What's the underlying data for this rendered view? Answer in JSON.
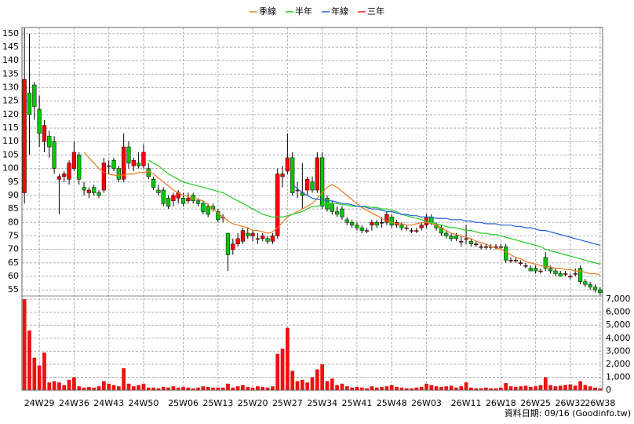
{
  "chart_data": {
    "type": "candlestick",
    "legend": "top",
    "footer": "資料日期: 09/16  (Goodinfo.tw)",
    "up_color": "#ff0000",
    "down_color": "#00c800",
    "volume_color": "#ee1111",
    "grid": true,
    "ylim": [
      52.7,
      152.3
    ],
    "yticks": [
      55,
      60,
      65,
      70,
      75,
      80,
      85,
      90,
      95,
      100,
      105,
      110,
      115,
      120,
      125,
      130,
      135,
      140,
      145,
      150
    ],
    "y2lim": [
      0,
      7250
    ],
    "y2ticks": [
      0,
      {
        "value": 1000,
        "label": "1,000"
      },
      {
        "value": 2000,
        "label": "2,000"
      },
      {
        "value": 3000,
        "label": "3,000"
      },
      {
        "value": 4000,
        "label": "4,000"
      },
      {
        "value": 5000,
        "label": "5,000"
      },
      {
        "value": 6000,
        "label": "6,000"
      },
      {
        "value": 7000,
        "label": "7,000"
      }
    ],
    "categories": [
      null,
      null,
      null,
      "24W29",
      null,
      null,
      null,
      null,
      null,
      null,
      "24W36",
      null,
      null,
      null,
      null,
      null,
      null,
      "24W43",
      null,
      null,
      null,
      null,
      null,
      null,
      "24W50",
      null,
      null,
      null,
      null,
      null,
      null,
      null,
      "25W06",
      null,
      null,
      null,
      null,
      null,
      null,
      "25W13",
      null,
      null,
      null,
      null,
      null,
      null,
      "25W20",
      null,
      null,
      null,
      null,
      null,
      null,
      "25W27",
      null,
      null,
      null,
      null,
      null,
      null,
      "25W34",
      null,
      null,
      null,
      null,
      null,
      null,
      "25W41",
      null,
      null,
      null,
      null,
      null,
      null,
      "25W48",
      null,
      null,
      null,
      null,
      null,
      null,
      "26W03",
      null,
      null,
      null,
      null,
      null,
      null,
      null,
      "26W11",
      null,
      null,
      null,
      null,
      null,
      null,
      "26W18",
      null,
      null,
      null,
      null,
      null,
      null,
      "26W25",
      null,
      null,
      null,
      null,
      null,
      null,
      "26W32",
      null,
      null,
      null,
      null,
      null,
      "26W38"
    ],
    "open": [
      91,
      128,
      131,
      122,
      110,
      112,
      110,
      96,
      97,
      96,
      100,
      105,
      93,
      91,
      93,
      91,
      92,
      101,
      103,
      100,
      96,
      108,
      101,
      102,
      101,
      100,
      96,
      92,
      92,
      89,
      88,
      89,
      89,
      88,
      90,
      88,
      87,
      86,
      86,
      84,
      82,
      76,
      70,
      72,
      73,
      76,
      75,
      74,
      74,
      74,
      73,
      75,
      97,
      99,
      104,
      92,
      91,
      92,
      95,
      92,
      104,
      89,
      87,
      84,
      85,
      81,
      80,
      79,
      78,
      77,
      79,
      80,
      80,
      80,
      82,
      79,
      79,
      78,
      77,
      77,
      78,
      79,
      82,
      79,
      78,
      76,
      75,
      75,
      73,
      74,
      73,
      72,
      71,
      71,
      71,
      71,
      71,
      71,
      66,
      66,
      65,
      64,
      63,
      63,
      62,
      67,
      63,
      62,
      61,
      61,
      60,
      61,
      63,
      58,
      57,
      56,
      55
    ],
    "high": [
      152,
      150,
      132,
      127,
      118,
      114,
      112,
      98,
      99,
      103,
      110,
      106,
      95,
      93,
      94,
      92,
      104,
      103,
      104,
      101,
      113,
      110,
      104,
      106,
      109,
      102,
      97,
      94,
      93,
      90,
      91,
      92,
      91,
      91,
      91,
      89,
      88,
      87,
      87,
      85,
      83,
      76,
      74,
      76,
      78,
      78,
      77,
      76,
      76,
      75,
      76,
      100,
      101,
      113,
      106,
      95,
      102,
      97,
      97,
      106,
      106,
      90,
      88,
      86,
      86,
      82,
      81,
      80,
      79,
      78,
      81,
      81,
      82,
      84,
      83,
      81,
      80,
      79,
      78,
      78,
      80,
      83,
      83,
      80,
      79,
      77,
      76,
      76,
      75,
      79,
      74,
      73,
      72,
      72,
      72,
      72,
      72,
      72,
      67,
      67,
      66,
      65,
      64,
      64,
      63,
      69,
      64,
      63,
      62,
      62,
      61,
      63,
      64,
      59,
      58,
      57,
      56
    ],
    "low": [
      87,
      105,
      118,
      108,
      106,
      104,
      98,
      83,
      95,
      94,
      99,
      94,
      90,
      89,
      90,
      89,
      91,
      98,
      99,
      95,
      95,
      100,
      99,
      100,
      100,
      96,
      92,
      90,
      86,
      85,
      86,
      87,
      86,
      87,
      87,
      86,
      83,
      82,
      84,
      80,
      80,
      62,
      68,
      71,
      72,
      74,
      73,
      72,
      73,
      72,
      72,
      74,
      93,
      98,
      90,
      89,
      85,
      90,
      91,
      91,
      85,
      84,
      83,
      82,
      81,
      79,
      78,
      77,
      76,
      76,
      77,
      78,
      78,
      79,
      78,
      78,
      77,
      77,
      76,
      76,
      77,
      78,
      79,
      77,
      75,
      74,
      73,
      73,
      71,
      72,
      71,
      71,
      70,
      70,
      70,
      70,
      70,
      65,
      65,
      65,
      64,
      63,
      62,
      61,
      61,
      62,
      61,
      60,
      60,
      60,
      59,
      60,
      57,
      56,
      55,
      54,
      53
    ],
    "close": [
      133,
      120,
      123,
      113,
      116,
      108,
      100,
      97,
      98,
      102,
      106,
      96,
      92,
      92,
      91,
      90,
      102,
      101,
      100,
      96,
      108,
      102,
      103,
      101,
      106,
      97,
      93,
      91,
      87,
      86,
      90,
      91,
      87,
      89,
      88,
      87,
      84,
      83,
      85,
      81,
      82,
      68,
      72,
      74,
      77,
      75,
      76,
      74,
      75,
      73,
      75,
      98,
      98,
      104,
      91,
      92,
      90,
      96,
      92,
      104,
      86,
      85,
      84,
      83,
      82,
      80,
      79,
      78,
      77,
      77,
      80,
      79,
      80,
      83,
      79,
      80,
      78,
      78,
      77,
      77,
      79,
      82,
      80,
      78,
      76,
      75,
      74,
      74,
      73,
      74,
      72,
      72,
      71,
      71,
      71,
      71,
      71,
      66,
      66,
      66,
      65,
      64,
      62,
      62,
      62,
      63,
      62,
      61,
      60,
      61,
      60,
      61,
      58,
      57,
      56,
      55,
      54
    ],
    "volume": [
      7000,
      4600,
      2500,
      1900,
      2900,
      600,
      700,
      600,
      400,
      800,
      1000,
      300,
      200,
      250,
      200,
      300,
      700,
      500,
      400,
      300,
      1700,
      500,
      300,
      400,
      500,
      200,
      200,
      150,
      250,
      200,
      300,
      200,
      250,
      200,
      150,
      200,
      300,
      250,
      200,
      200,
      200,
      500,
      200,
      300,
      400,
      250,
      200,
      300,
      250,
      200,
      300,
      2800,
      3200,
      4800,
      1500,
      700,
      800,
      600,
      1000,
      1600,
      2000,
      700,
      900,
      400,
      500,
      300,
      200,
      250,
      200,
      150,
      300,
      200,
      250,
      300,
      400,
      250,
      200,
      150,
      150,
      200,
      250,
      500,
      400,
      300,
      250,
      300,
      350,
      200,
      300,
      600,
      200,
      150,
      150,
      200,
      150,
      150,
      200,
      550,
      300,
      250,
      300,
      350,
      250,
      300,
      400,
      1000,
      400,
      300,
      350,
      400,
      450,
      350,
      700,
      400,
      300,
      200,
      150
    ],
    "series": [
      {
        "name": "季線",
        "color": "#e87a1e",
        "values": [
          null,
          null,
          null,
          null,
          null,
          null,
          null,
          null,
          null,
          null,
          null,
          null,
          106,
          104,
          102,
          100,
          98.5,
          98,
          97.5,
          97.5,
          97.5,
          98,
          98,
          98.5,
          98.5,
          99,
          98,
          96.5,
          95,
          93.5,
          92,
          91,
          90,
          89.5,
          89,
          88.5,
          88,
          86.5,
          85,
          83.5,
          82,
          80.5,
          79.5,
          79,
          78.5,
          78,
          77,
          77,
          76.5,
          76,
          76.5,
          78,
          80,
          82,
          83,
          84,
          85,
          86,
          87,
          89,
          91,
          93,
          94,
          93,
          91.5,
          90,
          88.5,
          87,
          85.5,
          84.5,
          83.5,
          82.5,
          81.5,
          80.5,
          80,
          79.5,
          79.5,
          79,
          79,
          79.5,
          80,
          80,
          79.5,
          79,
          78,
          77,
          76,
          75.5,
          75,
          74.5,
          74,
          73,
          72.5,
          72,
          71,
          70.5,
          70,
          69,
          68,
          67,
          66.5,
          65.5,
          65,
          64.5,
          64,
          63.5,
          63.5,
          63,
          63,
          62.5,
          62.5,
          62,
          62,
          61.5,
          61,
          61,
          60.5
        ]
      },
      {
        "name": "半年",
        "color": "#22cc22",
        "values": [
          null,
          null,
          null,
          null,
          null,
          null,
          null,
          null,
          null,
          null,
          null,
          null,
          null,
          null,
          null,
          null,
          null,
          null,
          null,
          null,
          null,
          null,
          null,
          null,
          null,
          103,
          102,
          101,
          99.5,
          98,
          97,
          96,
          95,
          94.5,
          94,
          93.5,
          93,
          92.5,
          92,
          91.5,
          91,
          90,
          89,
          88,
          87,
          86,
          85,
          84,
          83,
          82.5,
          82,
          82,
          82,
          82.5,
          83,
          83.5,
          84,
          85,
          86,
          86,
          86.5,
          87,
          87,
          87,
          86.5,
          86.5,
          86,
          86,
          86,
          86,
          85.5,
          85.5,
          85,
          85,
          84.5,
          84,
          83,
          82.5,
          82,
          81.5,
          81,
          80.5,
          80,
          79.5,
          79,
          78.5,
          78,
          78,
          77.5,
          77,
          77,
          76.5,
          76,
          76,
          75.5,
          75.5,
          75,
          74.5,
          74,
          73.5,
          73,
          72.5,
          72,
          71.5,
          71,
          70,
          69.5,
          69,
          68.5,
          68,
          67.5,
          67,
          66.5,
          66,
          65.5,
          65,
          64.5
        ]
      },
      {
        "name": "年線",
        "color": "#2060d0",
        "values": [
          null,
          null,
          null,
          null,
          null,
          null,
          null,
          null,
          null,
          null,
          null,
          null,
          null,
          null,
          null,
          null,
          null,
          null,
          null,
          null,
          null,
          null,
          null,
          null,
          null,
          null,
          null,
          null,
          null,
          null,
          null,
          null,
          null,
          null,
          null,
          null,
          null,
          null,
          null,
          null,
          null,
          null,
          null,
          null,
          null,
          null,
          null,
          null,
          null,
          null,
          null,
          null,
          null,
          null,
          94,
          92.5,
          91,
          90,
          89,
          88.5,
          88.5,
          88,
          88,
          87.5,
          87,
          87,
          86.5,
          86,
          86,
          85.5,
          85,
          85,
          84.5,
          84,
          84,
          83.5,
          83,
          83,
          82.5,
          82.5,
          82,
          82,
          82,
          81.5,
          81.5,
          81.5,
          81,
          81,
          81,
          80.5,
          80.5,
          80,
          80,
          79.5,
          79.5,
          79.5,
          79,
          79,
          79,
          78.5,
          78.5,
          78,
          78,
          77.5,
          77,
          77,
          76.5,
          76,
          75.5,
          75,
          74.5,
          74,
          73.5,
          73,
          72.5,
          72,
          71.5
        ]
      },
      {
        "name": "三年",
        "color": "#e02020"
      }
    ]
  }
}
